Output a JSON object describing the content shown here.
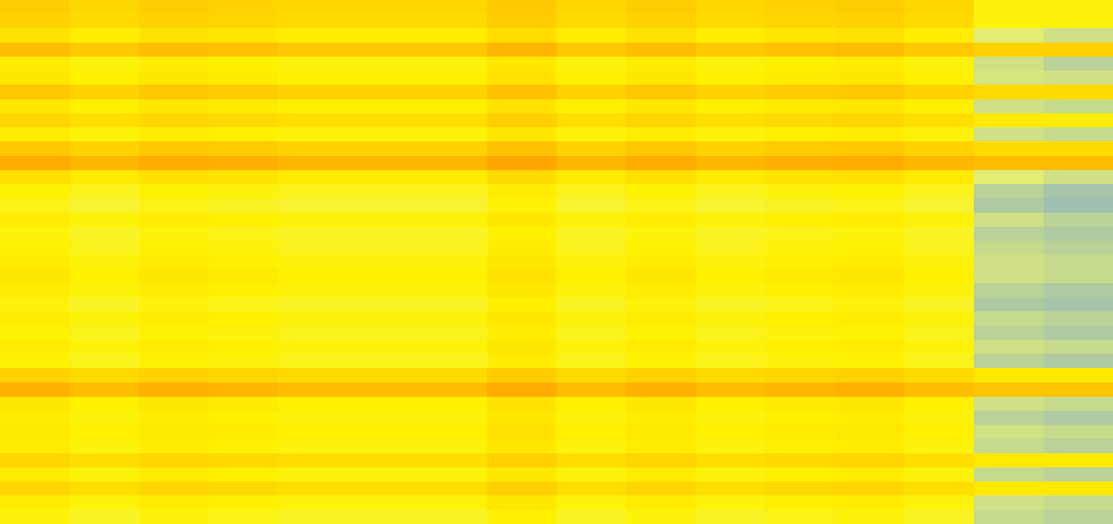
{
  "chart_data": {
    "type": "heatmap",
    "tick_labels": false,
    "grid": false,
    "cells": [
      [
        0.77,
        0.72,
        0.77,
        0.75,
        0.72,
        0.72,
        0.72,
        0.8,
        0.72,
        0.77,
        0.72,
        0.75,
        0.77,
        0.72,
        0.55,
        0.55
      ],
      [
        0.75,
        0.7,
        0.75,
        0.73,
        0.7,
        0.7,
        0.7,
        0.78,
        0.7,
        0.75,
        0.7,
        0.73,
        0.75,
        0.7,
        0.55,
        0.55
      ],
      [
        0.65,
        0.6,
        0.65,
        0.63,
        0.6,
        0.6,
        0.6,
        0.68,
        0.6,
        0.65,
        0.6,
        0.63,
        0.65,
        0.6,
        0.35,
        0.3
      ],
      [
        0.85,
        0.8,
        0.85,
        0.83,
        0.8,
        0.8,
        0.8,
        0.88,
        0.8,
        0.85,
        0.8,
        0.83,
        0.85,
        0.8,
        0.75,
        0.75
      ],
      [
        0.6,
        0.55,
        0.6,
        0.58,
        0.55,
        0.55,
        0.55,
        0.63,
        0.55,
        0.6,
        0.55,
        0.58,
        0.6,
        0.55,
        0.3,
        0.25
      ],
      [
        0.63,
        0.58,
        0.63,
        0.61,
        0.58,
        0.58,
        0.58,
        0.66,
        0.58,
        0.63,
        0.58,
        0.61,
        0.63,
        0.58,
        0.32,
        0.3
      ],
      [
        0.8,
        0.75,
        0.8,
        0.78,
        0.75,
        0.75,
        0.75,
        0.83,
        0.75,
        0.8,
        0.75,
        0.78,
        0.8,
        0.75,
        0.7,
        0.7
      ],
      [
        0.63,
        0.58,
        0.63,
        0.61,
        0.58,
        0.58,
        0.58,
        0.66,
        0.58,
        0.63,
        0.58,
        0.61,
        0.63,
        0.58,
        0.3,
        0.28
      ],
      [
        0.73,
        0.68,
        0.73,
        0.71,
        0.68,
        0.68,
        0.68,
        0.76,
        0.68,
        0.73,
        0.68,
        0.71,
        0.73,
        0.68,
        0.62,
        0.6
      ],
      [
        0.6,
        0.55,
        0.6,
        0.58,
        0.55,
        0.55,
        0.55,
        0.63,
        0.55,
        0.6,
        0.55,
        0.58,
        0.6,
        0.55,
        0.3,
        0.28
      ],
      [
        0.8,
        0.75,
        0.8,
        0.78,
        0.75,
        0.75,
        0.75,
        0.83,
        0.75,
        0.8,
        0.75,
        0.78,
        0.8,
        0.75,
        0.7,
        0.7
      ],
      [
        0.93,
        0.88,
        0.93,
        0.91,
        0.88,
        0.88,
        0.88,
        0.96,
        0.88,
        0.93,
        0.88,
        0.91,
        0.93,
        0.88,
        0.85,
        0.85
      ],
      [
        0.67,
        0.62,
        0.67,
        0.65,
        0.62,
        0.62,
        0.62,
        0.7,
        0.62,
        0.67,
        0.62,
        0.65,
        0.67,
        0.62,
        0.35,
        0.3
      ],
      [
        0.57,
        0.52,
        0.57,
        0.55,
        0.52,
        0.52,
        0.52,
        0.6,
        0.52,
        0.57,
        0.52,
        0.55,
        0.57,
        0.52,
        0.25,
        0.2
      ],
      [
        0.53,
        0.48,
        0.53,
        0.51,
        0.48,
        0.48,
        0.48,
        0.56,
        0.48,
        0.53,
        0.48,
        0.51,
        0.53,
        0.48,
        0.22,
        0.18
      ],
      [
        0.6,
        0.55,
        0.6,
        0.58,
        0.55,
        0.55,
        0.55,
        0.63,
        0.55,
        0.6,
        0.55,
        0.58,
        0.6,
        0.55,
        0.3,
        0.25
      ],
      [
        0.55,
        0.5,
        0.55,
        0.53,
        0.5,
        0.5,
        0.5,
        0.58,
        0.5,
        0.55,
        0.5,
        0.53,
        0.55,
        0.5,
        0.25,
        0.22
      ],
      [
        0.57,
        0.52,
        0.57,
        0.55,
        0.52,
        0.52,
        0.52,
        0.6,
        0.52,
        0.57,
        0.52,
        0.55,
        0.57,
        0.52,
        0.28,
        0.25
      ],
      [
        0.6,
        0.55,
        0.6,
        0.58,
        0.55,
        0.55,
        0.55,
        0.63,
        0.55,
        0.6,
        0.55,
        0.58,
        0.6,
        0.55,
        0.3,
        0.28
      ],
      [
        0.63,
        0.58,
        0.63,
        0.61,
        0.58,
        0.58,
        0.58,
        0.66,
        0.58,
        0.63,
        0.58,
        0.61,
        0.63,
        0.58,
        0.3,
        0.28
      ],
      [
        0.6,
        0.55,
        0.6,
        0.58,
        0.55,
        0.55,
        0.55,
        0.63,
        0.55,
        0.6,
        0.55,
        0.58,
        0.6,
        0.55,
        0.25,
        0.22
      ],
      [
        0.55,
        0.5,
        0.55,
        0.53,
        0.5,
        0.5,
        0.5,
        0.58,
        0.5,
        0.55,
        0.5,
        0.53,
        0.55,
        0.5,
        0.22,
        0.2
      ],
      [
        0.6,
        0.55,
        0.6,
        0.58,
        0.55,
        0.55,
        0.55,
        0.63,
        0.55,
        0.6,
        0.55,
        0.58,
        0.6,
        0.55,
        0.28,
        0.25
      ],
      [
        0.57,
        0.52,
        0.57,
        0.55,
        0.52,
        0.52,
        0.52,
        0.6,
        0.52,
        0.57,
        0.52,
        0.55,
        0.57,
        0.52,
        0.25,
        0.22
      ],
      [
        0.6,
        0.55,
        0.6,
        0.58,
        0.55,
        0.55,
        0.55,
        0.63,
        0.55,
        0.6,
        0.55,
        0.58,
        0.6,
        0.55,
        0.3,
        0.28
      ],
      [
        0.57,
        0.52,
        0.57,
        0.55,
        0.52,
        0.52,
        0.52,
        0.6,
        0.52,
        0.57,
        0.52,
        0.55,
        0.57,
        0.52,
        0.25,
        0.22
      ],
      [
        0.75,
        0.7,
        0.75,
        0.73,
        0.7,
        0.7,
        0.7,
        0.78,
        0.7,
        0.75,
        0.7,
        0.73,
        0.75,
        0.7,
        0.62,
        0.62
      ],
      [
        0.9,
        0.85,
        0.9,
        0.88,
        0.85,
        0.85,
        0.85,
        0.93,
        0.85,
        0.9,
        0.85,
        0.88,
        0.9,
        0.85,
        0.82,
        0.82
      ],
      [
        0.63,
        0.58,
        0.63,
        0.61,
        0.58,
        0.58,
        0.58,
        0.66,
        0.58,
        0.63,
        0.58,
        0.61,
        0.63,
        0.58,
        0.3,
        0.28
      ],
      [
        0.6,
        0.55,
        0.6,
        0.58,
        0.55,
        0.55,
        0.55,
        0.63,
        0.55,
        0.6,
        0.55,
        0.58,
        0.6,
        0.55,
        0.25,
        0.22
      ],
      [
        0.63,
        0.58,
        0.63,
        0.61,
        0.58,
        0.58,
        0.58,
        0.66,
        0.58,
        0.63,
        0.58,
        0.61,
        0.63,
        0.58,
        0.3,
        0.28
      ],
      [
        0.6,
        0.55,
        0.6,
        0.58,
        0.55,
        0.55,
        0.55,
        0.63,
        0.55,
        0.6,
        0.55,
        0.58,
        0.6,
        0.55,
        0.28,
        0.25
      ],
      [
        0.73,
        0.68,
        0.73,
        0.71,
        0.68,
        0.68,
        0.68,
        0.76,
        0.68,
        0.73,
        0.68,
        0.71,
        0.73,
        0.68,
        0.62,
        0.62
      ],
      [
        0.6,
        0.55,
        0.6,
        0.58,
        0.55,
        0.55,
        0.55,
        0.63,
        0.55,
        0.6,
        0.55,
        0.58,
        0.6,
        0.55,
        0.28,
        0.25
      ],
      [
        0.73,
        0.68,
        0.73,
        0.71,
        0.68,
        0.68,
        0.68,
        0.76,
        0.68,
        0.73,
        0.68,
        0.71,
        0.73,
        0.68,
        0.62,
        0.62
      ],
      [
        0.6,
        0.55,
        0.6,
        0.58,
        0.55,
        0.55,
        0.55,
        0.63,
        0.55,
        0.6,
        0.55,
        0.58,
        0.6,
        0.55,
        0.3,
        0.28
      ],
      [
        0.55,
        0.5,
        0.55,
        0.53,
        0.5,
        0.5,
        0.5,
        0.58,
        0.5,
        0.55,
        0.5,
        0.53,
        0.55,
        0.5,
        0.28,
        0.25
      ]
    ]
  }
}
